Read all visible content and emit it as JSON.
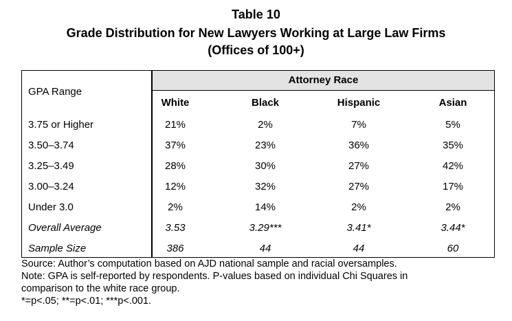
{
  "title": {
    "line1": "Table 10",
    "line2": "Grade Distribution for New Lawyers Working at Large Law Firms",
    "line3": "(Offices of 100+)"
  },
  "table": {
    "row_header_label": "GPA Range",
    "group_header": "Attorney Race",
    "columns": [
      "White",
      "Black",
      "Hispanic",
      "Asian"
    ],
    "rows": [
      {
        "label": "3.75 or Higher",
        "values": [
          "21%",
          "2%",
          "7%",
          "5%"
        ],
        "italic": false
      },
      {
        "label": "3.50–3.74",
        "values": [
          "37%",
          "23%",
          "36%",
          "35%"
        ],
        "italic": false
      },
      {
        "label": "3.25–3.49",
        "values": [
          "28%",
          "30%",
          "27%",
          "42%"
        ],
        "italic": false
      },
      {
        "label": "3.00–3.24",
        "values": [
          "12%",
          "32%",
          "27%",
          "17%"
        ],
        "italic": false
      },
      {
        "label": "Under 3.0",
        "values": [
          "2%",
          "14%",
          "2%",
          "2%"
        ],
        "italic": false
      },
      {
        "label": "Overall Average",
        "values": [
          "3.53",
          "3.29***",
          "3.41*",
          "3.44*"
        ],
        "italic": true
      },
      {
        "label": "Sample Size",
        "values": [
          "386",
          "44",
          "44",
          "60"
        ],
        "italic": true
      }
    ]
  },
  "notes": {
    "source": "Source:  Author’s computation based on AJD national sample and racial oversamples.",
    "note_line1": "Note:  GPA is self-reported by respondents.  P-values based on individual Chi Squares in",
    "note_line2": "comparison to the white race group.",
    "significance": "*=p<.05; **=p<.01; ***p<.001."
  }
}
